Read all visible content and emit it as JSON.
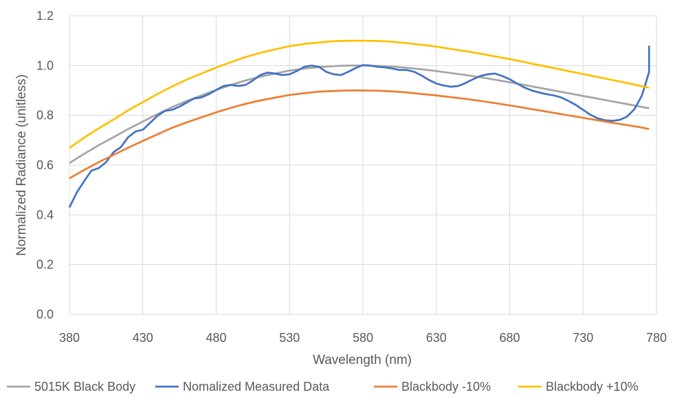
{
  "chart_data": {
    "type": "line",
    "title": "",
    "xlabel": "Wavelength (nm)",
    "ylabel": "Normalized Radiance (unitless)",
    "xlim": [
      380,
      780
    ],
    "ylim": [
      0,
      1.2
    ],
    "x_ticks": [
      "380",
      "430",
      "480",
      "530",
      "580",
      "630",
      "680",
      "730",
      "780"
    ],
    "y_ticks": [
      "0.0",
      "0.2",
      "0.4",
      "0.6",
      "0.8",
      "1.0",
      "1.2"
    ],
    "grid": true,
    "legend_position": "bottom",
    "series": [
      {
        "name": "5015K Black Body",
        "color": "#a5a5a5",
        "points": [
          [
            380,
            0.608
          ],
          [
            390,
            0.645
          ],
          [
            400,
            0.68
          ],
          [
            410,
            0.712
          ],
          [
            420,
            0.745
          ],
          [
            430,
            0.775
          ],
          [
            440,
            0.805
          ],
          [
            450,
            0.833
          ],
          [
            460,
            0.858
          ],
          [
            470,
            0.88
          ],
          [
            480,
            0.902
          ],
          [
            490,
            0.922
          ],
          [
            500,
            0.94
          ],
          [
            510,
            0.955
          ],
          [
            520,
            0.968
          ],
          [
            530,
            0.98
          ],
          [
            540,
            0.988
          ],
          [
            550,
            0.994
          ],
          [
            560,
            0.998
          ],
          [
            570,
            1.0
          ],
          [
            580,
            1.0
          ],
          [
            590,
            0.999
          ],
          [
            600,
            0.996
          ],
          [
            610,
            0.991
          ],
          [
            620,
            0.985
          ],
          [
            630,
            0.978
          ],
          [
            640,
            0.97
          ],
          [
            650,
            0.962
          ],
          [
            660,
            0.953
          ],
          [
            670,
            0.943
          ],
          [
            680,
            0.933
          ],
          [
            690,
            0.922
          ],
          [
            700,
            0.911
          ],
          [
            710,
            0.9
          ],
          [
            720,
            0.889
          ],
          [
            730,
            0.878
          ],
          [
            740,
            0.867
          ],
          [
            750,
            0.856
          ],
          [
            760,
            0.845
          ],
          [
            770,
            0.834
          ],
          [
            775,
            0.828
          ]
        ]
      },
      {
        "name": "Nomalized Measured Data",
        "color": "#4472c4",
        "points": [
          [
            380,
            0.43
          ],
          [
            385,
            0.49
          ],
          [
            390,
            0.535
          ],
          [
            395,
            0.578
          ],
          [
            400,
            0.588
          ],
          [
            405,
            0.612
          ],
          [
            410,
            0.652
          ],
          [
            415,
            0.672
          ],
          [
            420,
            0.712
          ],
          [
            425,
            0.735
          ],
          [
            430,
            0.742
          ],
          [
            435,
            0.77
          ],
          [
            440,
            0.798
          ],
          [
            445,
            0.818
          ],
          [
            450,
            0.822
          ],
          [
            455,
            0.835
          ],
          [
            460,
            0.852
          ],
          [
            465,
            0.868
          ],
          [
            470,
            0.872
          ],
          [
            475,
            0.885
          ],
          [
            480,
            0.902
          ],
          [
            485,
            0.918
          ],
          [
            490,
            0.922
          ],
          [
            495,
            0.918
          ],
          [
            500,
            0.922
          ],
          [
            505,
            0.94
          ],
          [
            510,
            0.962
          ],
          [
            515,
            0.972
          ],
          [
            520,
            0.968
          ],
          [
            525,
            0.962
          ],
          [
            530,
            0.965
          ],
          [
            535,
            0.978
          ],
          [
            540,
            0.995
          ],
          [
            545,
            1.0
          ],
          [
            550,
            0.995
          ],
          [
            555,
            0.975
          ],
          [
            560,
            0.965
          ],
          [
            565,
            0.962
          ],
          [
            570,
            0.975
          ],
          [
            575,
            0.99
          ],
          [
            580,
            1.002
          ],
          [
            585,
            1.0
          ],
          [
            590,
            0.995
          ],
          [
            595,
            0.993
          ],
          [
            600,
            0.988
          ],
          [
            605,
            0.982
          ],
          [
            610,
            0.982
          ],
          [
            615,
            0.975
          ],
          [
            620,
            0.96
          ],
          [
            625,
            0.942
          ],
          [
            630,
            0.928
          ],
          [
            635,
            0.92
          ],
          [
            640,
            0.915
          ],
          [
            645,
            0.918
          ],
          [
            650,
            0.93
          ],
          [
            655,
            0.945
          ],
          [
            660,
            0.958
          ],
          [
            665,
            0.965
          ],
          [
            670,
            0.968
          ],
          [
            675,
            0.958
          ],
          [
            680,
            0.945
          ],
          [
            685,
            0.928
          ],
          [
            690,
            0.912
          ],
          [
            695,
            0.9
          ],
          [
            700,
            0.892
          ],
          [
            705,
            0.885
          ],
          [
            710,
            0.88
          ],
          [
            715,
            0.872
          ],
          [
            720,
            0.858
          ],
          [
            725,
            0.842
          ],
          [
            730,
            0.822
          ],
          [
            735,
            0.802
          ],
          [
            740,
            0.788
          ],
          [
            745,
            0.78
          ],
          [
            750,
            0.778
          ],
          [
            755,
            0.782
          ],
          [
            760,
            0.795
          ],
          [
            765,
            0.825
          ],
          [
            770,
            0.878
          ],
          [
            773,
            0.935
          ],
          [
            775,
            0.975
          ],
          [
            775,
            1.08
          ]
        ]
      },
      {
        "name": "Blackbody -10%",
        "color": "#ed7d31",
        "points": [
          [
            380,
            0.547
          ],
          [
            390,
            0.58
          ],
          [
            400,
            0.612
          ],
          [
            410,
            0.641
          ],
          [
            420,
            0.67
          ],
          [
            430,
            0.697
          ],
          [
            440,
            0.724
          ],
          [
            450,
            0.75
          ],
          [
            460,
            0.772
          ],
          [
            470,
            0.792
          ],
          [
            480,
            0.812
          ],
          [
            490,
            0.83
          ],
          [
            500,
            0.846
          ],
          [
            510,
            0.86
          ],
          [
            520,
            0.871
          ],
          [
            530,
            0.882
          ],
          [
            540,
            0.889
          ],
          [
            550,
            0.895
          ],
          [
            560,
            0.898
          ],
          [
            570,
            0.9
          ],
          [
            580,
            0.9
          ],
          [
            590,
            0.899
          ],
          [
            600,
            0.896
          ],
          [
            610,
            0.892
          ],
          [
            620,
            0.886
          ],
          [
            630,
            0.88
          ],
          [
            640,
            0.873
          ],
          [
            650,
            0.866
          ],
          [
            660,
            0.858
          ],
          [
            670,
            0.849
          ],
          [
            680,
            0.84
          ],
          [
            690,
            0.83
          ],
          [
            700,
            0.82
          ],
          [
            710,
            0.81
          ],
          [
            720,
            0.8
          ],
          [
            730,
            0.79
          ],
          [
            740,
            0.78
          ],
          [
            750,
            0.77
          ],
          [
            760,
            0.761
          ],
          [
            770,
            0.751
          ],
          [
            775,
            0.745
          ]
        ]
      },
      {
        "name": "Blackbody +10%",
        "color": "#ffc000",
        "points": [
          [
            380,
            0.669
          ],
          [
            390,
            0.71
          ],
          [
            400,
            0.748
          ],
          [
            410,
            0.783
          ],
          [
            420,
            0.82
          ],
          [
            430,
            0.853
          ],
          [
            440,
            0.886
          ],
          [
            450,
            0.916
          ],
          [
            460,
            0.944
          ],
          [
            470,
            0.968
          ],
          [
            480,
            0.992
          ],
          [
            490,
            1.014
          ],
          [
            500,
            1.034
          ],
          [
            510,
            1.051
          ],
          [
            520,
            1.065
          ],
          [
            530,
            1.078
          ],
          [
            540,
            1.087
          ],
          [
            550,
            1.093
          ],
          [
            560,
            1.098
          ],
          [
            570,
            1.1
          ],
          [
            580,
            1.1
          ],
          [
            590,
            1.099
          ],
          [
            600,
            1.096
          ],
          [
            610,
            1.09
          ],
          [
            620,
            1.084
          ],
          [
            630,
            1.076
          ],
          [
            640,
            1.067
          ],
          [
            650,
            1.058
          ],
          [
            660,
            1.048
          ],
          [
            670,
            1.037
          ],
          [
            680,
            1.026
          ],
          [
            690,
            1.014
          ],
          [
            700,
            1.002
          ],
          [
            710,
            0.99
          ],
          [
            720,
            0.978
          ],
          [
            730,
            0.966
          ],
          [
            740,
            0.954
          ],
          [
            750,
            0.942
          ],
          [
            760,
            0.93
          ],
          [
            770,
            0.917
          ],
          [
            775,
            0.911
          ]
        ]
      }
    ]
  }
}
